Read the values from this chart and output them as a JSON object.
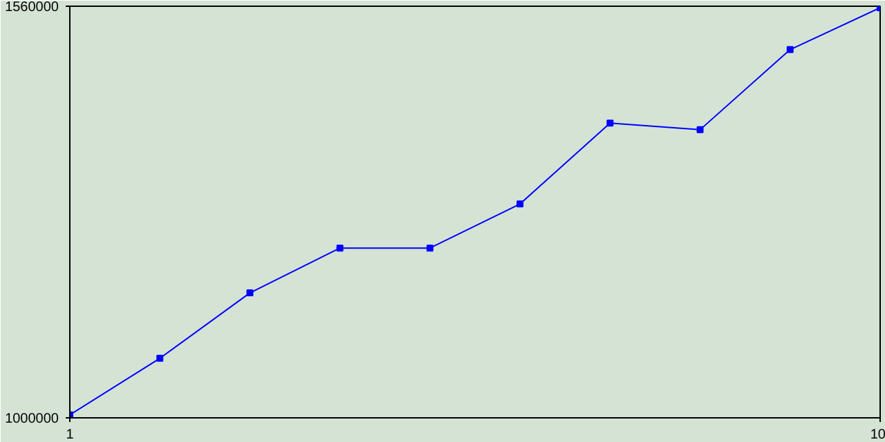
{
  "chart_data": {
    "type": "line",
    "x": [
      1,
      2,
      3,
      4,
      5,
      6,
      7,
      8,
      9,
      10
    ],
    "series": [
      {
        "color": "#0000ff",
        "values": [
          1004000,
          1081000,
          1170000,
          1231000,
          1231000,
          1291000,
          1401000,
          1392000,
          1501000,
          1558000
        ]
      }
    ],
    "xlim": [
      1,
      10
    ],
    "ylim": [
      1000000,
      1560000
    ],
    "xticks": [
      1,
      10
    ],
    "yticks": [
      1000000,
      1560000
    ],
    "marker": "square",
    "line_style": "solid"
  }
}
